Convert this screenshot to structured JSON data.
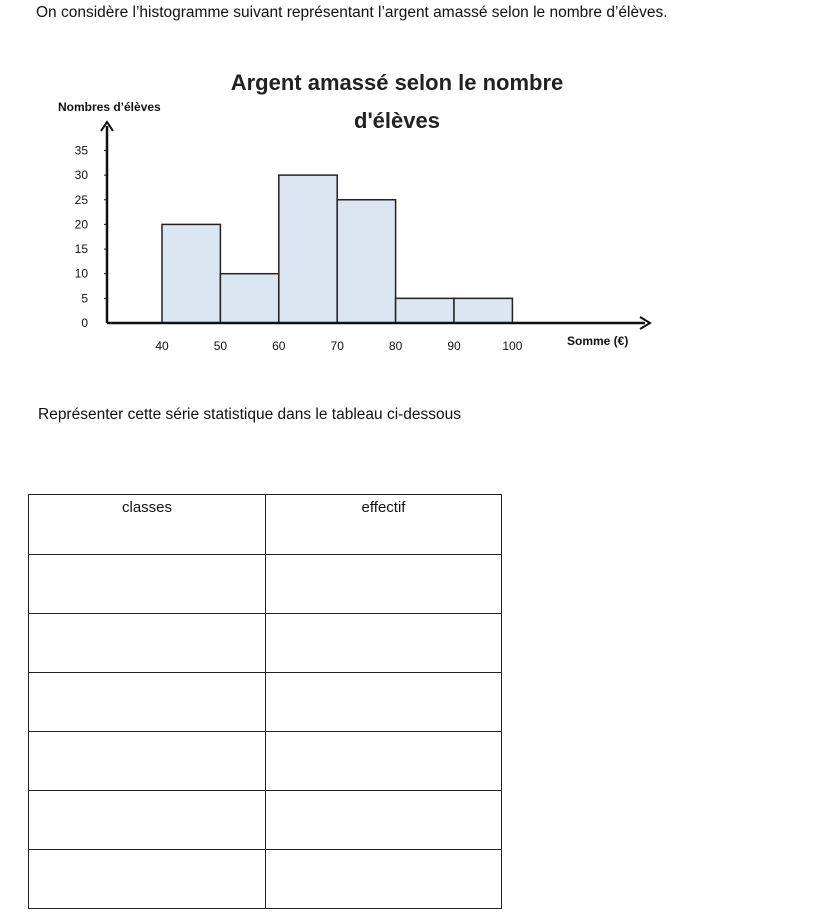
{
  "intro_text": "On considère l’histogramme suivant représentant l’argent amassé selon le nombre d’élèves.",
  "instruction_text": "Représenter cette série statistique dans le tableau ci-dessous",
  "table": {
    "headers": [
      "classes",
      "effectif"
    ],
    "empty_rows": 6
  },
  "chart_data": {
    "type": "bar",
    "title_lines": [
      "Argent amassé selon le nombre",
      "d'élèves"
    ],
    "xlabel": "Somme (€)",
    "ylabel": "Nombres d’élèves",
    "bins": [
      {
        "from": 40,
        "to": 50,
        "value": 20
      },
      {
        "from": 50,
        "to": 60,
        "value": 10
      },
      {
        "from": 60,
        "to": 70,
        "value": 30
      },
      {
        "from": 70,
        "to": 80,
        "value": 25
      },
      {
        "from": 80,
        "to": 90,
        "value": 5
      },
      {
        "from": 90,
        "to": 100,
        "value": 5
      }
    ],
    "x_ticks": [
      40,
      50,
      60,
      70,
      80,
      90,
      100
    ],
    "y_ticks": [
      0,
      5,
      10,
      15,
      20,
      25,
      30,
      35
    ],
    "ylim": [
      0,
      35
    ],
    "bar_fill": "#dce6f2",
    "bar_stroke": "#222222",
    "grid": false
  }
}
